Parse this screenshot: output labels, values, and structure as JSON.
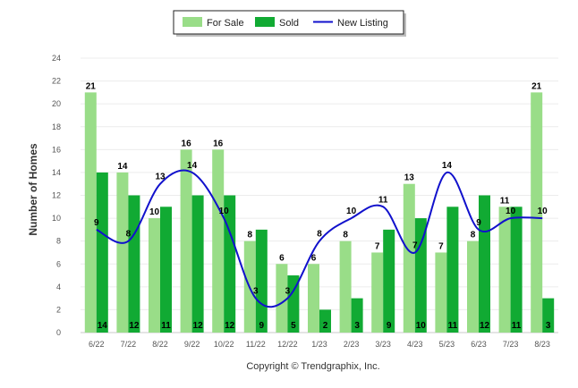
{
  "chart_data": {
    "type": "bar",
    "categories": [
      "6/22",
      "7/22",
      "8/22",
      "9/22",
      "10/22",
      "11/22",
      "12/22",
      "1/23",
      "2/23",
      "3/23",
      "4/23",
      "5/23",
      "6/23",
      "7/23",
      "8/23"
    ],
    "series": [
      {
        "name": "For Sale",
        "type": "bar",
        "color": "#99dd88",
        "values": [
          21,
          14,
          10,
          16,
          16,
          8,
          6,
          6,
          8,
          7,
          13,
          7,
          8,
          11,
          21
        ]
      },
      {
        "name": "Sold",
        "type": "bar",
        "color": "#11aa33",
        "values": [
          14,
          12,
          11,
          12,
          12,
          9,
          5,
          2,
          3,
          9,
          10,
          11,
          12,
          11,
          3
        ]
      },
      {
        "name": "New Listing",
        "type": "line",
        "color": "#1111cc",
        "values": [
          9,
          8,
          13,
          14,
          10,
          3,
          3,
          8,
          10,
          11,
          7,
          14,
          9,
          10,
          10
        ]
      }
    ],
    "xlabel": "",
    "ylabel": "Number of Homes",
    "ylim": [
      0,
      24
    ],
    "yticks": [
      0,
      2,
      4,
      6,
      8,
      10,
      12,
      14,
      16,
      18,
      20,
      22,
      24
    ],
    "grid": true,
    "legend_placement": "top-center",
    "footer": "Copyright © Trendgraphix, Inc."
  }
}
